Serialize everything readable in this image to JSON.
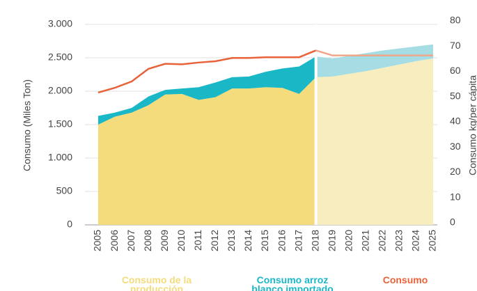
{
  "chart_data": {
    "type": "stacked_area",
    "y_label": "Consumo (Miles Ton)",
    "y2_label": "Consumo kg/per cápita",
    "categories": [
      "2005",
      "2006",
      "2007",
      "2008",
      "2009",
      "2010",
      "2011",
      "2012",
      "2013",
      "2014",
      "2015",
      "2016",
      "2017",
      "2018",
      "2019",
      "2020",
      "2021",
      "2022",
      "2023",
      "2024",
      "2025"
    ],
    "projection_start": "2018",
    "series": [
      {
        "name": "Consumo de la producción nacional",
        "color": "#f4dc7c",
        "projection_color": "#f7edbe",
        "values": [
          1500,
          1620,
          1680,
          1790,
          1950,
          1960,
          1870,
          1910,
          2040,
          2040,
          2060,
          2050,
          1960,
          2210,
          2220,
          2260,
          2300,
          2350,
          2400,
          2450,
          2490
        ]
      },
      {
        "name": "Consumo arroz blanco importado",
        "color": "#1ab7c6",
        "projection_color": "#a6dde4",
        "values": [
          130,
          60,
          70,
          130,
          70,
          80,
          190,
          220,
          170,
          180,
          230,
          290,
          410,
          310,
          270,
          270,
          270,
          260,
          240,
          220,
          210
        ]
      },
      {
        "name": "Consumo",
        "color": "#e8623a",
        "projection_color": "#f0a688",
        "axis": "y2",
        "kind": "line",
        "values": [
          51.6,
          53.5,
          56,
          61,
          63,
          62.8,
          63.5,
          64,
          65.3,
          65.3,
          65.6,
          65.6,
          65.6,
          68.3,
          66.3,
          66.3,
          66.3,
          66.3,
          66.3,
          66.3,
          66.3
        ]
      }
    ],
    "ylim": [
      0,
      3000
    ],
    "yticks": [
      0,
      500,
      {
        "value": 1000,
        "label": "1.000"
      },
      {
        "value": 1500,
        "label": "1.500"
      },
      {
        "value": 2000,
        "label": "2.000"
      },
      {
        "value": 2500,
        "label": "2.500"
      },
      {
        "value": 3000,
        "label": "3.000"
      }
    ],
    "y2lim": [
      0,
      80
    ],
    "y2ticks": [
      0,
      10,
      20,
      30,
      40,
      50,
      60,
      70,
      80
    ],
    "grid": true
  }
}
